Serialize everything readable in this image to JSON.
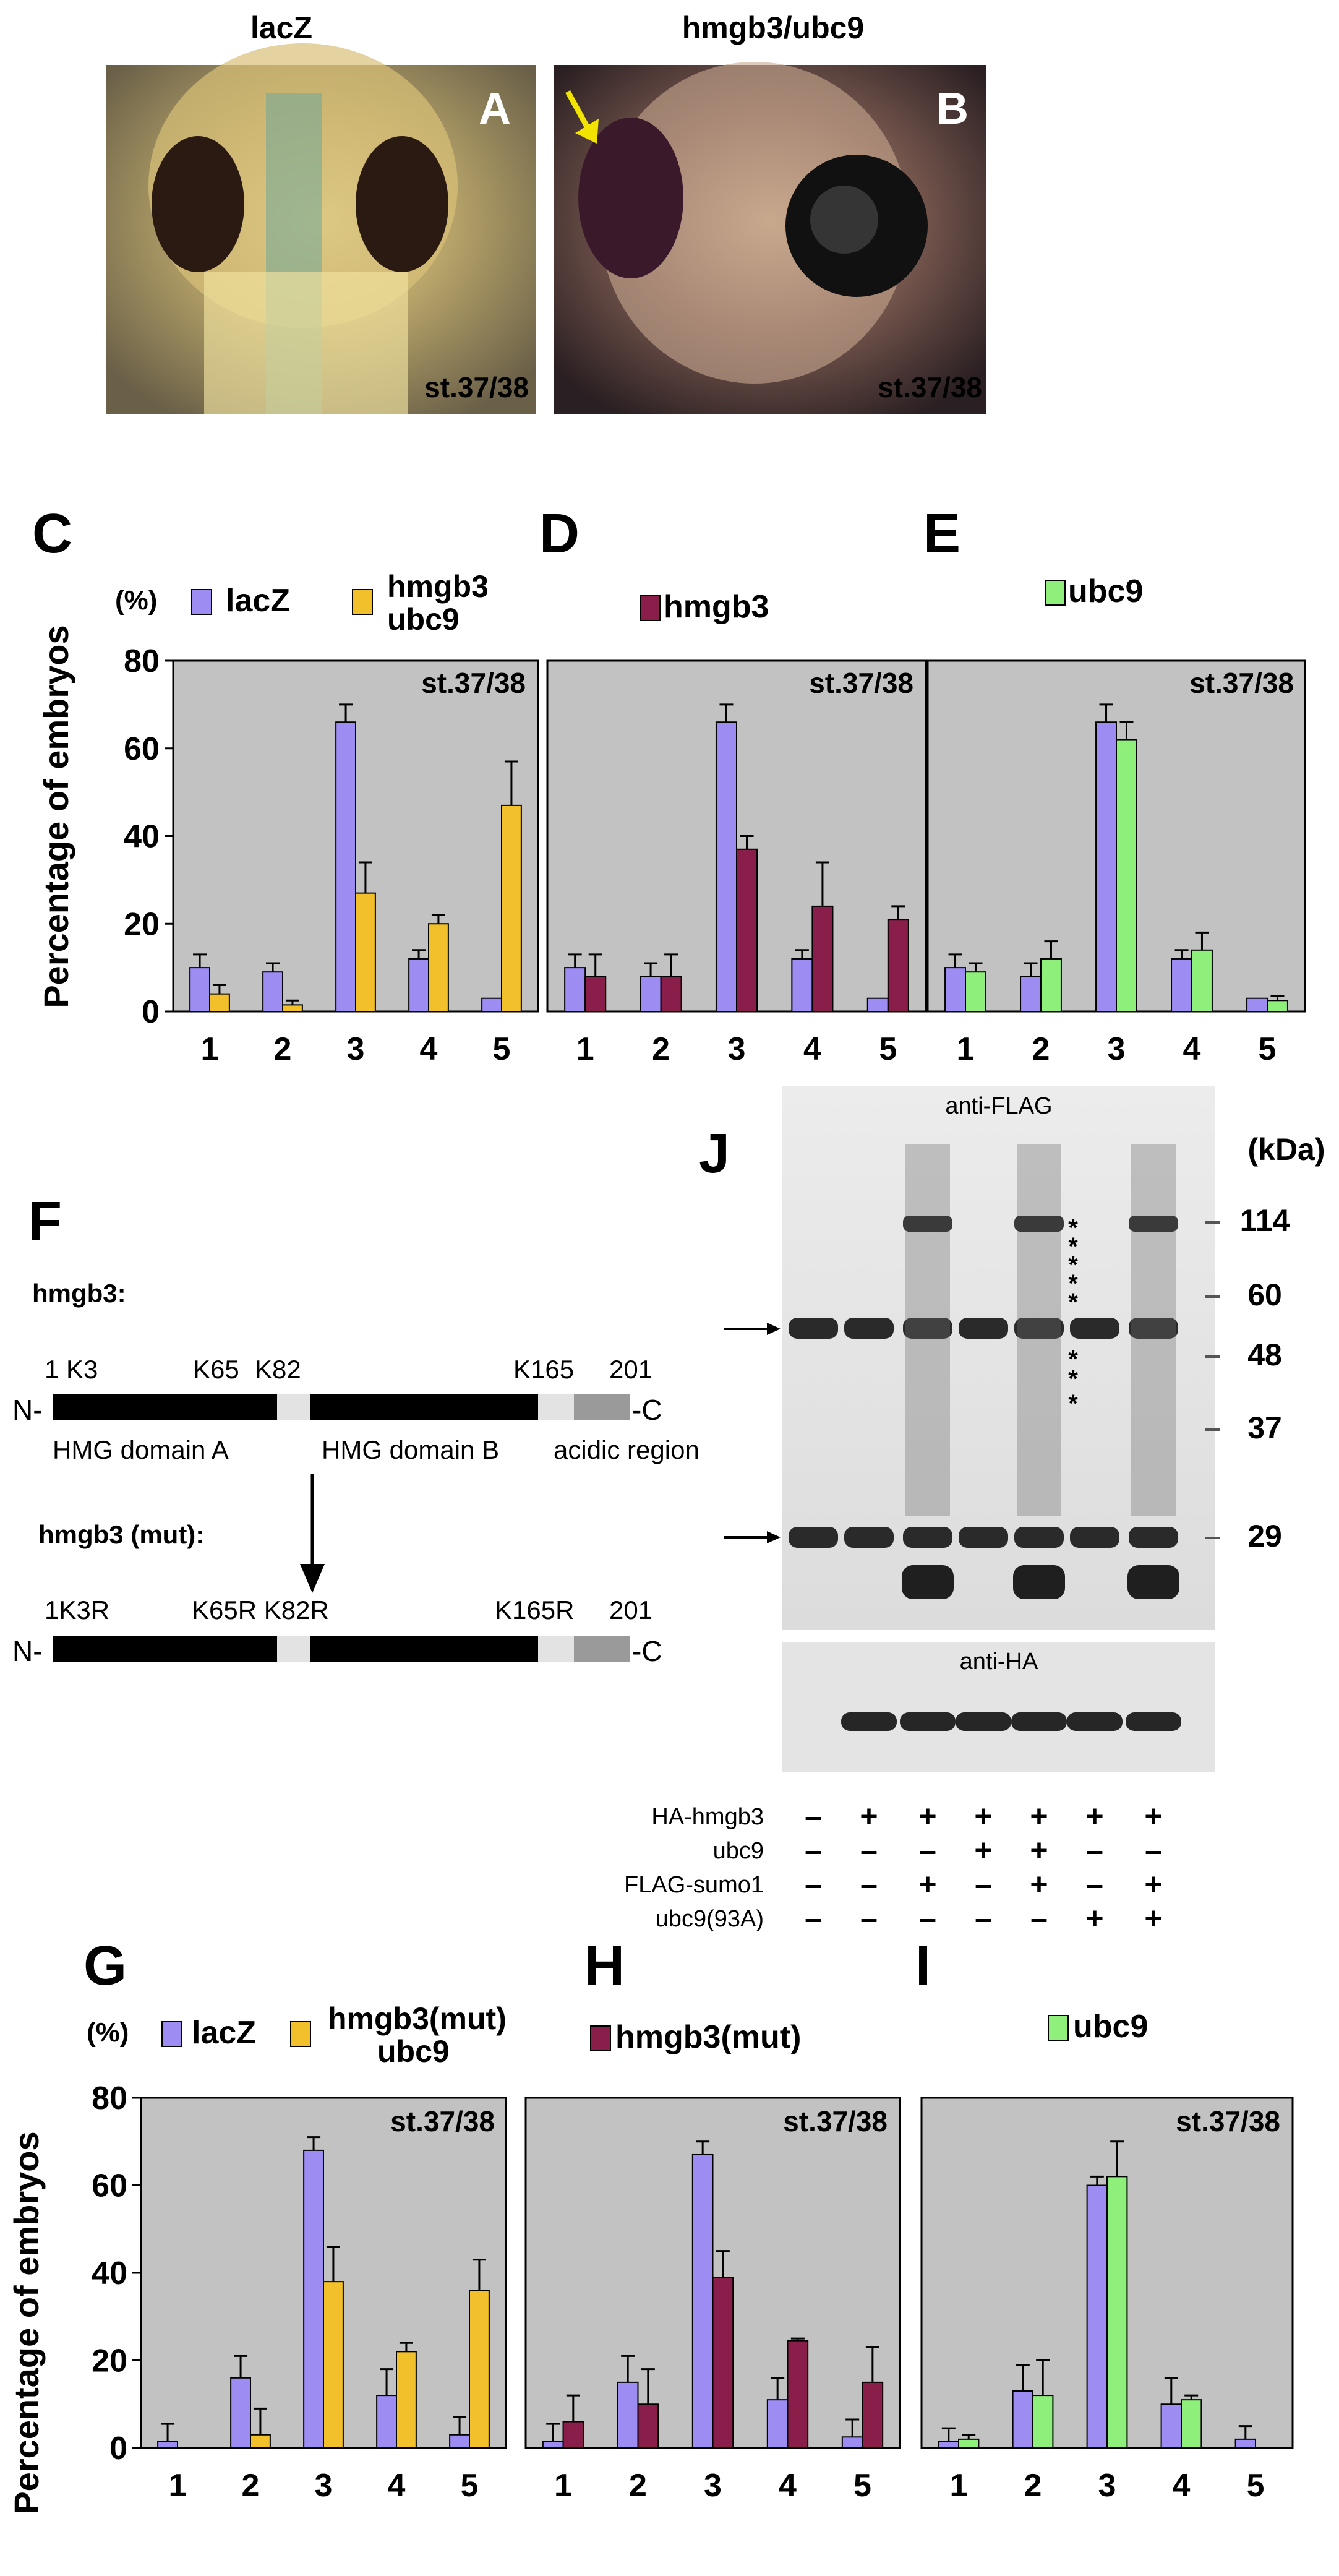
{
  "photos": {
    "A": {
      "panel": "A",
      "title": "lacZ",
      "stage": "st.37/38"
    },
    "B": {
      "panel": "B",
      "title": "hmgb3/ubc9",
      "stage": "st.37/38"
    }
  },
  "colors": {
    "lacZ": "#9d8cf2",
    "hmgb3ubc9": "#f2c02a",
    "hmgb3": "#8a1e4a",
    "ubc9": "#8ef07a",
    "plot_bg": "#c2c2c2",
    "photo_arrow": "#f2e400"
  },
  "ylabel": "Percentage of embryos",
  "y_unit": "(%)",
  "chart_data": [
    {
      "panel": "C",
      "type": "bar",
      "stage": "st.37/38",
      "unit": "(%)",
      "categories": [
        "1",
        "2",
        "3",
        "4",
        "5"
      ],
      "ylim": [
        0,
        80
      ],
      "yticks": [
        "0",
        "20",
        "40",
        "60",
        "80"
      ],
      "series": [
        {
          "name": "lacZ",
          "color": "#9d8cf2",
          "values": [
            10,
            9,
            66,
            12,
            3
          ],
          "errors": [
            3,
            2,
            4,
            2,
            0
          ]
        },
        {
          "name": "hmgb3\nubc9",
          "color": "#f2c02a",
          "values": [
            4,
            1.5,
            27,
            20,
            47
          ],
          "errors": [
            2,
            1,
            7,
            2,
            10
          ]
        }
      ]
    },
    {
      "panel": "D",
      "type": "bar",
      "stage": "st.37/38",
      "categories": [
        "1",
        "2",
        "3",
        "4",
        "5"
      ],
      "ylim": [
        0,
        80
      ],
      "series": [
        {
          "name": "",
          "color": "#9d8cf2",
          "values": [
            10,
            8,
            66,
            12,
            3
          ],
          "errors": [
            3,
            3,
            4,
            2,
            0
          ]
        },
        {
          "name": "hmgb3",
          "color": "#8a1e4a",
          "values": [
            8,
            8,
            37,
            24,
            21
          ],
          "errors": [
            5,
            5,
            3,
            10,
            3
          ]
        }
      ]
    },
    {
      "panel": "E",
      "type": "bar",
      "stage": "st.37/38",
      "categories": [
        "1",
        "2",
        "3",
        "4",
        "5"
      ],
      "ylim": [
        0,
        80
      ],
      "series": [
        {
          "name": "",
          "color": "#9d8cf2",
          "values": [
            10,
            8,
            66,
            12,
            3
          ],
          "errors": [
            3,
            3,
            4,
            2,
            0
          ]
        },
        {
          "name": "ubc9",
          "color": "#8ef07a",
          "values": [
            9,
            12,
            62,
            14,
            2.5
          ],
          "errors": [
            2,
            4,
            4,
            4,
            1
          ]
        }
      ]
    },
    {
      "panel": "G",
      "type": "bar",
      "stage": "st.37/38",
      "unit": "(%)",
      "categories": [
        "1",
        "2",
        "3",
        "4",
        "5"
      ],
      "ylim": [
        0,
        80
      ],
      "yticks": [
        "0",
        "20",
        "40",
        "60",
        "80"
      ],
      "series": [
        {
          "name": "lacZ",
          "color": "#9d8cf2",
          "values": [
            1.5,
            16,
            68,
            12,
            3
          ],
          "errors": [
            4,
            5,
            3,
            6,
            4
          ]
        },
        {
          "name": "hmgb3(mut)\nubc9",
          "color": "#f2c02a",
          "values": [
            0,
            3,
            38,
            22,
            36
          ],
          "errors": [
            0,
            6,
            8,
            2,
            7
          ]
        }
      ]
    },
    {
      "panel": "H",
      "type": "bar",
      "stage": "st.37/38",
      "categories": [
        "1",
        "2",
        "3",
        "4",
        "5"
      ],
      "ylim": [
        0,
        80
      ],
      "series": [
        {
          "name": "",
          "color": "#9d8cf2",
          "values": [
            1.5,
            15,
            67,
            11,
            2.5
          ],
          "errors": [
            4,
            6,
            3,
            5,
            4
          ]
        },
        {
          "name": "hmgb3(mut)",
          "color": "#8a1e4a",
          "values": [
            6,
            10,
            39,
            24.5,
            15
          ],
          "errors": [
            6,
            8,
            6,
            0.5,
            8
          ]
        }
      ]
    },
    {
      "panel": "I",
      "type": "bar",
      "stage": "st.37/38",
      "categories": [
        "1",
        "2",
        "3",
        "4",
        "5"
      ],
      "ylim": [
        0,
        80
      ],
      "series": [
        {
          "name": "",
          "color": "#9d8cf2",
          "values": [
            1.5,
            13,
            60,
            10,
            2
          ],
          "errors": [
            3,
            6,
            2,
            6,
            3
          ]
        },
        {
          "name": "ubc9",
          "color": "#8ef07a",
          "values": [
            2,
            12,
            62,
            11,
            0
          ],
          "errors": [
            1,
            8,
            8,
            1,
            0
          ]
        }
      ]
    }
  ],
  "diagram": {
    "panel": "F",
    "wt_label": "hmgb3:",
    "mut_label": "hmgb3 (mut):",
    "n_term": "N-",
    "c_term": "-C",
    "wt_sites": [
      "1 K3",
      "K65",
      "K82",
      "K165",
      "201"
    ],
    "mut_sites": [
      "1K3R",
      "K65R K82R",
      "K165R",
      "201"
    ],
    "domains": [
      "HMG domain A",
      "HMG domain B",
      "acidic region"
    ]
  },
  "blot": {
    "panel": "J",
    "top_label": "anti-FLAG",
    "bottom_label": "anti-HA",
    "kda_title": "(kDa)",
    "markers": [
      "114",
      "60",
      "48",
      "37",
      "29"
    ],
    "stars": [
      "*",
      "*",
      "*",
      "*",
      "*",
      "*",
      "*",
      "*"
    ],
    "rows": [
      {
        "label": "HA-hmgb3",
        "signs": [
          "–",
          "+",
          "+",
          "+",
          "+",
          "+",
          "+"
        ]
      },
      {
        "label": "ubc9",
        "signs": [
          "–",
          "–",
          "–",
          "+",
          "+",
          "–",
          "–"
        ]
      },
      {
        "label": "FLAG-sumo1",
        "signs": [
          "–",
          "–",
          "+",
          "–",
          "+",
          "–",
          "+"
        ]
      },
      {
        "label": "ubc9(93A)",
        "signs": [
          "–",
          "–",
          "–",
          "–",
          "–",
          "+",
          "+"
        ]
      }
    ]
  }
}
